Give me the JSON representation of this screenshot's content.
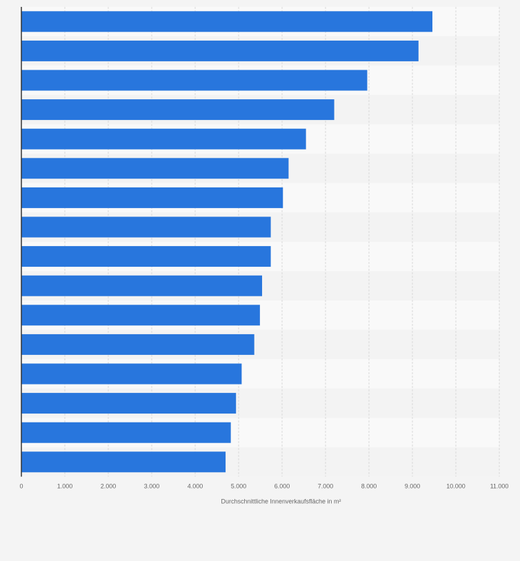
{
  "chart_data": {
    "type": "bar",
    "orientation": "horizontal",
    "values": [
      9460,
      9140,
      7960,
      7200,
      6550,
      6150,
      6020,
      5740,
      5740,
      5540,
      5490,
      5360,
      5070,
      4940,
      4820,
      4700
    ],
    "xlabel": "Durchschnittliche Innenverkaufsfläche in m²",
    "xlim": [
      0,
      11000
    ],
    "ticks": [
      "0",
      "1.000",
      "2.000",
      "3.000",
      "4.000",
      "5.000",
      "6.000",
      "7.000",
      "8.000",
      "9.000",
      "10.000",
      "11.000"
    ],
    "grid": true,
    "colors": {
      "bar": "#2876dd",
      "band_light": "#f9f9f9",
      "band_dark": "#f3f3f3",
      "grid": "#d9d9d9",
      "axis": "#333333",
      "text": "#666666"
    }
  }
}
